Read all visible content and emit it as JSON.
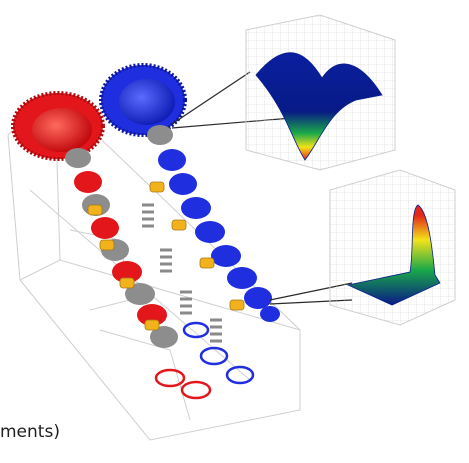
{
  "caption_fragment": "ments)",
  "colors": {
    "camshaft_left": "#e3161b",
    "camshaft_right": "#1f2fe0",
    "shaft_steel": "#8d8d8d",
    "spring_gold": "#f2b21c",
    "surface_low": "#081a86",
    "surface_mid": "#1aa84a",
    "surface_high": "#f3e319",
    "surface_peak": "#e1261b",
    "wireframe": "#c8c8c8"
  },
  "icons": [
    "left-camshaft-icon",
    "right-camshaft-icon",
    "valve-spring-icon",
    "surface-plot-icon"
  ]
}
